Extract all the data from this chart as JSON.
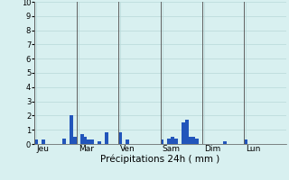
{
  "xlabel": "Précipitations 24h ( mm )",
  "ylim": [
    0,
    10
  ],
  "yticks": [
    0,
    1,
    2,
    3,
    4,
    5,
    6,
    7,
    8,
    9,
    10
  ],
  "background_color": "#d8f0f0",
  "plot_bg_color": "#d8f0f0",
  "bar_color": "#2255bb",
  "grid_color": "#b8d8d8",
  "day_line_color": "#606060",
  "days": [
    "Jeu",
    "Mar",
    "Ven",
    "Sam",
    "Dim",
    "Lun"
  ],
  "n_bars": 72,
  "bar_values": [
    0.3,
    0.0,
    0.3,
    0.0,
    0.0,
    0.0,
    0.0,
    0.0,
    0.4,
    0.0,
    2.0,
    0.5,
    0.0,
    0.7,
    0.5,
    0.3,
    0.3,
    0.0,
    0.2,
    0.0,
    0.8,
    0.0,
    0.0,
    0.0,
    0.8,
    0.0,
    0.3,
    0.0,
    0.0,
    0.0,
    0.0,
    0.0,
    0.0,
    0.0,
    0.0,
    0.0,
    0.3,
    0.0,
    0.4,
    0.5,
    0.4,
    0.0,
    1.5,
    1.7,
    0.5,
    0.5,
    0.4,
    0.0,
    0.0,
    0.0,
    0.0,
    0.0,
    0.0,
    0.0,
    0.2,
    0.0,
    0.0,
    0.0,
    0.0,
    0.0,
    0.3,
    0.0,
    0.0,
    0.0,
    0.0,
    0.0,
    0.0,
    0.0,
    0.0,
    0.0,
    0.0,
    0.0
  ],
  "ytick_fontsize": 6,
  "xtick_fontsize": 6.5,
  "xlabel_fontsize": 7.5
}
